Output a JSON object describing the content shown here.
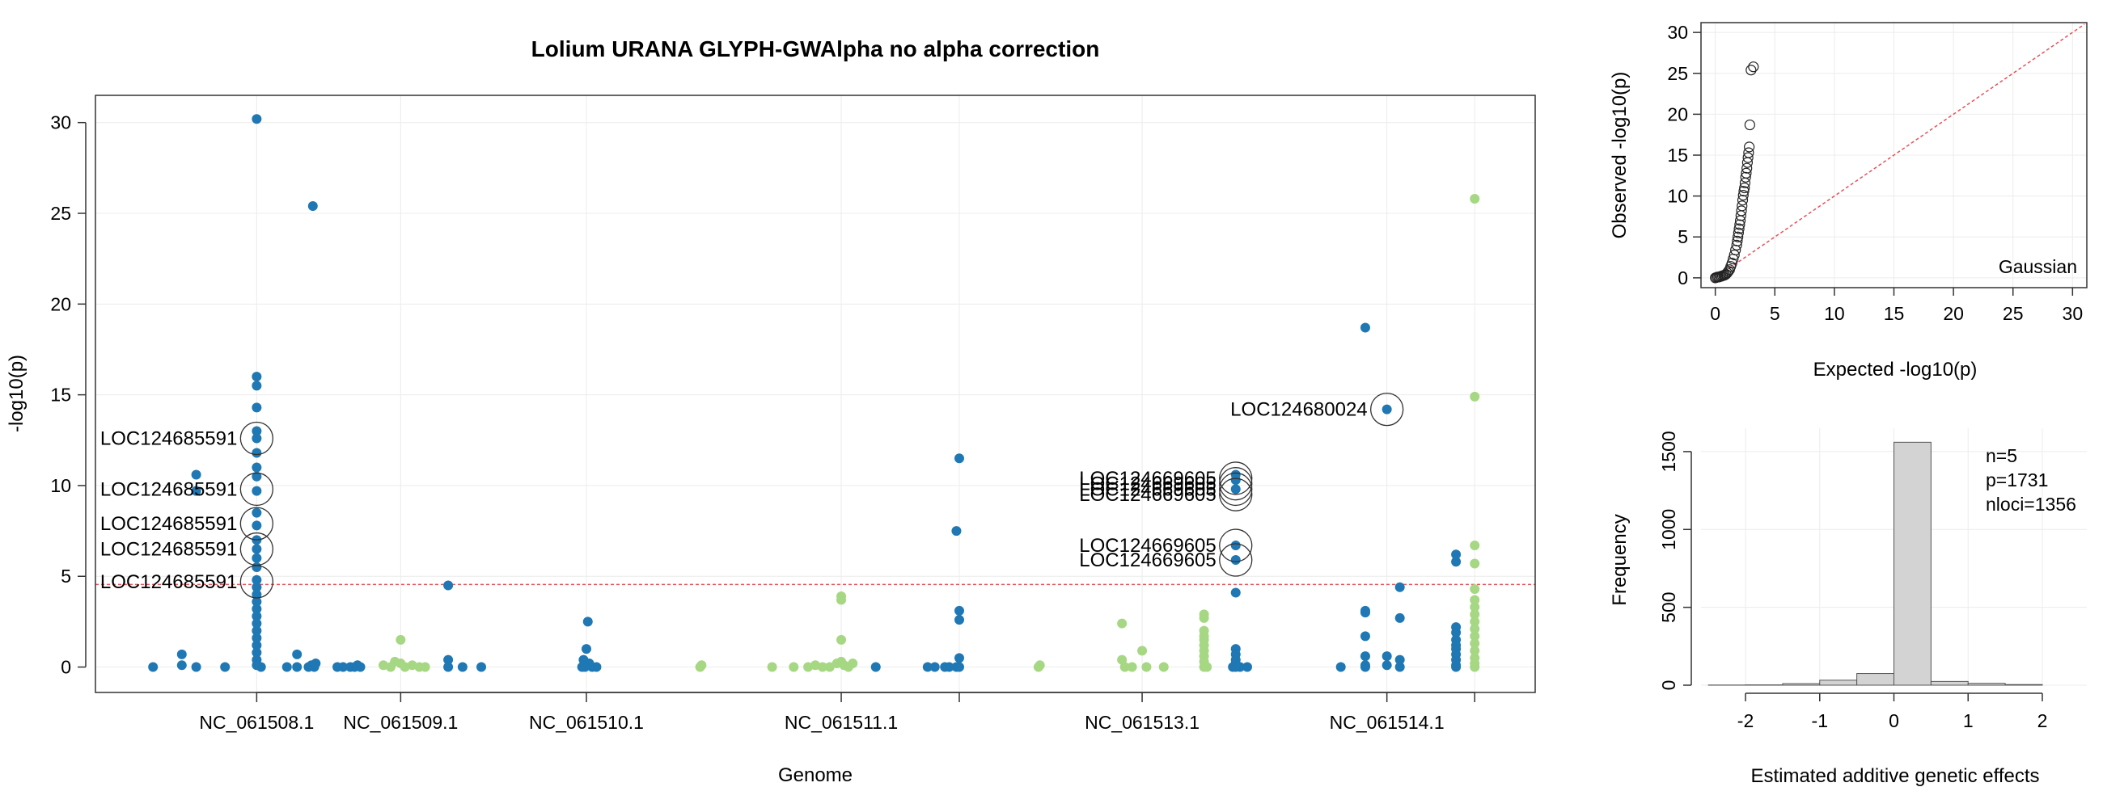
{
  "chart_data": [
    {
      "type": "scatter",
      "title": "Lolium URANA GLYPH-GWAlpha no alpha correction",
      "xlabel": "Genome",
      "ylabel": "-log10(p)",
      "ylim": [
        -1.4,
        31.5
      ],
      "yticks": [
        0,
        5,
        10,
        15,
        20,
        25,
        30
      ],
      "grid": true,
      "threshold": 4.55,
      "categories": [
        "NC_061508.1",
        "NC_061509.1",
        "NC_061510.1",
        "NC_061511.1",
        "NC_061513.1",
        "NC_061514.1"
      ],
      "colors": {
        "blue": "#1f78b4",
        "green": "#a6d783",
        "threshold": "#e8505b"
      },
      "series": [
        {
          "color": "blue",
          "points": [
            [
              0.04,
              0
            ],
            [
              0.06,
              0.7
            ],
            [
              0.06,
              0.1
            ],
            [
              0.07,
              0
            ],
            [
              0.07,
              10.6
            ],
            [
              0.07,
              9.7
            ],
            [
              0.09,
              0
            ],
            [
              0.112,
              30.2
            ],
            [
              0.112,
              16
            ],
            [
              0.112,
              15.5
            ],
            [
              0.112,
              14.3
            ],
            [
              0.112,
              13
            ],
            [
              0.112,
              12.6
            ],
            [
              0.112,
              11.8
            ],
            [
              0.112,
              11
            ],
            [
              0.112,
              10.5
            ],
            [
              0.112,
              9.7
            ],
            [
              0.112,
              8.5
            ],
            [
              0.112,
              7.8
            ],
            [
              0.112,
              7
            ],
            [
              0.112,
              6.5
            ],
            [
              0.112,
              6
            ],
            [
              0.112,
              5.5
            ],
            [
              0.112,
              4.8
            ],
            [
              0.112,
              4.4
            ],
            [
              0.112,
              4
            ],
            [
              0.112,
              3.6
            ],
            [
              0.112,
              3.2
            ],
            [
              0.112,
              2.8
            ],
            [
              0.112,
              2.4
            ],
            [
              0.112,
              2
            ],
            [
              0.112,
              1.6
            ],
            [
              0.112,
              1.2
            ],
            [
              0.112,
              0.8
            ],
            [
              0.112,
              0.4
            ],
            [
              0.112,
              0.1
            ],
            [
              0.115,
              0
            ],
            [
              0.133,
              0
            ],
            [
              0.14,
              0.7
            ],
            [
              0.14,
              0
            ],
            [
              0.151,
              25.4
            ],
            [
              0.148,
              0
            ],
            [
              0.15,
              0.1
            ],
            [
              0.152,
              0
            ],
            [
              0.153,
              0.2
            ],
            [
              0.168,
              0
            ],
            [
              0.172,
              0
            ],
            [
              0.177,
              0
            ],
            [
              0.18,
              0
            ],
            [
              0.182,
              0.1
            ],
            [
              0.184,
              0
            ],
            [
              0.245,
              4.5
            ],
            [
              0.245,
              0.4
            ],
            [
              0.245,
              0
            ],
            [
              0.255,
              0
            ],
            [
              0.268,
              0
            ],
            [
              0.338,
              0
            ],
            [
              0.339,
              0.4
            ],
            [
              0.34,
              0
            ],
            [
              0.341,
              1
            ],
            [
              0.342,
              2.5
            ],
            [
              0.343,
              0.2
            ],
            [
              0.345,
              0
            ],
            [
              0.348,
              0
            ],
            [
              0.542,
              0
            ],
            [
              0.578,
              0
            ],
            [
              0.583,
              0
            ],
            [
              0.59,
              0
            ],
            [
              0.593,
              0
            ],
            [
              0.598,
              7.5
            ],
            [
              0.598,
              0
            ],
            [
              0.6,
              3.1
            ],
            [
              0.6,
              2.6
            ],
            [
              0.6,
              11.5
            ],
            [
              0.6,
              0.5
            ],
            [
              0.6,
              0
            ],
            [
              0.792,
              10.6
            ],
            [
              0.792,
              10.3
            ],
            [
              0.792,
              9.8
            ],
            [
              0.792,
              6.7
            ],
            [
              0.792,
              5.9
            ],
            [
              0.792,
              4.1
            ],
            [
              0.792,
              1
            ],
            [
              0.792,
              0.7
            ],
            [
              0.792,
              0.4
            ],
            [
              0.792,
              0.2
            ],
            [
              0.792,
              0
            ],
            [
              0.795,
              0
            ],
            [
              0.8,
              0
            ],
            [
              0.79,
              0
            ],
            [
              0.865,
              0
            ],
            [
              0.882,
              18.7
            ],
            [
              0.882,
              3.1
            ],
            [
              0.882,
              3
            ],
            [
              0.882,
              1.7
            ],
            [
              0.882,
              0.6
            ],
            [
              0.882,
              0.1
            ],
            [
              0.882,
              0
            ],
            [
              0.897,
              14.2
            ],
            [
              0.897,
              0.6
            ],
            [
              0.897,
              0.1
            ],
            [
              0.906,
              4.4
            ],
            [
              0.906,
              2.7
            ],
            [
              0.906,
              0.4
            ],
            [
              0.906,
              0
            ],
            [
              0.945,
              6.2
            ],
            [
              0.945,
              5.8
            ],
            [
              0.945,
              2.2
            ],
            [
              0.945,
              1.9
            ],
            [
              0.945,
              1.5
            ],
            [
              0.945,
              1.2
            ],
            [
              0.945,
              1
            ],
            [
              0.945,
              0.7
            ],
            [
              0.945,
              0.4
            ],
            [
              0.945,
              0.1
            ],
            [
              0.945,
              0
            ]
          ]
        },
        {
          "color": "green",
          "points": [
            [
              0.2,
              0.1
            ],
            [
              0.205,
              0
            ],
            [
              0.208,
              0.3
            ],
            [
              0.212,
              1.5
            ],
            [
              0.212,
              0.2
            ],
            [
              0.215,
              0
            ],
            [
              0.22,
              0.1
            ],
            [
              0.225,
              0
            ],
            [
              0.229,
              0
            ],
            [
              0.42,
              0
            ],
            [
              0.421,
              0.1
            ],
            [
              0.47,
              0
            ],
            [
              0.485,
              0
            ],
            [
              0.495,
              0
            ],
            [
              0.5,
              0.1
            ],
            [
              0.505,
              0
            ],
            [
              0.51,
              0
            ],
            [
              0.515,
              0.2
            ],
            [
              0.518,
              1.5
            ],
            [
              0.518,
              3.9
            ],
            [
              0.518,
              3.7
            ],
            [
              0.518,
              0.3
            ],
            [
              0.52,
              0.1
            ],
            [
              0.523,
              0
            ],
            [
              0.526,
              0.2
            ],
            [
              0.655,
              0
            ],
            [
              0.656,
              0.1
            ],
            [
              0.713,
              2.4
            ],
            [
              0.713,
              0.4
            ],
            [
              0.715,
              0
            ],
            [
              0.72,
              0
            ],
            [
              0.727,
              0.9
            ],
            [
              0.73,
              0
            ],
            [
              0.742,
              0
            ],
            [
              0.77,
              2.9
            ],
            [
              0.77,
              2.7
            ],
            [
              0.77,
              2
            ],
            [
              0.77,
              1.7
            ],
            [
              0.77,
              1.5
            ],
            [
              0.77,
              1.2
            ],
            [
              0.77,
              0.9
            ],
            [
              0.77,
              0.6
            ],
            [
              0.77,
              0.3
            ],
            [
              0.77,
              0
            ],
            [
              0.772,
              0
            ],
            [
              0.958,
              25.8
            ],
            [
              0.958,
              14.9
            ],
            [
              0.958,
              6.7
            ],
            [
              0.958,
              5.7
            ],
            [
              0.958,
              4.3
            ],
            [
              0.958,
              3.7
            ],
            [
              0.958,
              3.3
            ],
            [
              0.958,
              2.9
            ],
            [
              0.958,
              2.5
            ],
            [
              0.958,
              2.1
            ],
            [
              0.958,
              1.7
            ],
            [
              0.958,
              1.3
            ],
            [
              0.958,
              0.9
            ],
            [
              0.958,
              0.5
            ],
            [
              0.958,
              0.2
            ],
            [
              0.958,
              0
            ]
          ]
        }
      ],
      "annotations": [
        {
          "label": "LOC124685591",
          "x": 0.112,
          "y": 12.6
        },
        {
          "label": "LOC124685591",
          "x": 0.112,
          "y": 9.8
        },
        {
          "label": "LOC124685591",
          "x": 0.112,
          "y": 7.9
        },
        {
          "label": "LOC124685591",
          "x": 0.112,
          "y": 6.5
        },
        {
          "label": "LOC124685591",
          "x": 0.112,
          "y": 4.7
        },
        {
          "label": "LOC124669605",
          "x": 0.792,
          "y": 10.4
        },
        {
          "label": "LOC124669605",
          "x": 0.792,
          "y": 10.1
        },
        {
          "label": "LOC124669605",
          "x": 0.792,
          "y": 9.8
        },
        {
          "label": "LOC124669605",
          "x": 0.792,
          "y": 9.5
        },
        {
          "label": "LOC124669605",
          "x": 0.792,
          "y": 6.7
        },
        {
          "label": "LOC124669605",
          "x": 0.792,
          "y": 5.9
        },
        {
          "label": "LOC124680024",
          "x": 0.897,
          "y": 14.2
        }
      ],
      "category_positions": [
        0.112,
        0.212,
        0.341,
        0.518,
        0.727,
        0.897
      ],
      "extra_ticks": [
        0.6,
        0.958
      ]
    },
    {
      "type": "scatter",
      "xlabel": "Expected -log10(p)",
      "ylabel": "Observed -log10(p)",
      "xlim": [
        -1.2,
        31.2
      ],
      "ylim": [
        -1.2,
        31.2
      ],
      "xticks": [
        0,
        5,
        10,
        15,
        20,
        25,
        30
      ],
      "yticks": [
        0,
        5,
        10,
        15,
        20,
        25,
        30
      ],
      "grid": true,
      "legend": "Gaussian",
      "reference_line": [
        [
          0,
          0
        ],
        [
          31,
          31
        ]
      ],
      "points": [
        [
          0,
          0
        ],
        [
          0.1,
          0.05
        ],
        [
          0.2,
          0.1
        ],
        [
          0.3,
          0.1
        ],
        [
          0.4,
          0.15
        ],
        [
          0.5,
          0.2
        ],
        [
          0.6,
          0.25
        ],
        [
          0.7,
          0.3
        ],
        [
          0.8,
          0.35
        ],
        [
          0.9,
          0.45
        ],
        [
          1.0,
          0.6
        ],
        [
          1.1,
          0.8
        ],
        [
          1.2,
          1.0
        ],
        [
          1.3,
          1.4
        ],
        [
          1.4,
          1.8
        ],
        [
          1.5,
          2.3
        ],
        [
          1.6,
          2.8
        ],
        [
          1.7,
          3.4
        ],
        [
          1.8,
          4.0
        ],
        [
          1.85,
          4.5
        ],
        [
          1.9,
          5.0
        ],
        [
          1.95,
          5.5
        ],
        [
          2.0,
          6.0
        ],
        [
          2.05,
          6.5
        ],
        [
          2.1,
          7.0
        ],
        [
          2.15,
          7.6
        ],
        [
          2.2,
          8.2
        ],
        [
          2.25,
          8.8
        ],
        [
          2.3,
          9.5
        ],
        [
          2.35,
          10.1
        ],
        [
          2.4,
          10.6
        ],
        [
          2.45,
          11.0
        ],
        [
          2.5,
          11.6
        ],
        [
          2.55,
          12.3
        ],
        [
          2.6,
          12.8
        ],
        [
          2.65,
          13.4
        ],
        [
          2.7,
          14.1
        ],
        [
          2.75,
          14.7
        ],
        [
          2.8,
          15.3
        ],
        [
          2.85,
          16.0
        ],
        [
          2.9,
          18.7
        ],
        [
          3.0,
          25.4
        ],
        [
          3.2,
          25.8
        ]
      ]
    },
    {
      "type": "bar",
      "xlabel": "Estimated additive genetic effects",
      "ylabel": "Frequency",
      "xlim": [
        -2.6,
        2.6
      ],
      "ylim": [
        0,
        1650
      ],
      "xticks": [
        -2,
        -1,
        0,
        1,
        2
      ],
      "yticks": [
        0,
        500,
        1000,
        1500
      ],
      "grid": true,
      "bins": [
        [
          -2.5,
          -2.0,
          1
        ],
        [
          -2.0,
          -1.5,
          2
        ],
        [
          -1.5,
          -1.0,
          10
        ],
        [
          -1.0,
          -0.5,
          32
        ],
        [
          -0.5,
          0.0,
          75
        ],
        [
          0.0,
          0.5,
          1560
        ],
        [
          0.5,
          1.0,
          24
        ],
        [
          1.0,
          1.5,
          12
        ],
        [
          1.5,
          2.0,
          4
        ]
      ],
      "stats": [
        "n=5",
        "p=1731",
        "nloci=1356"
      ]
    }
  ]
}
